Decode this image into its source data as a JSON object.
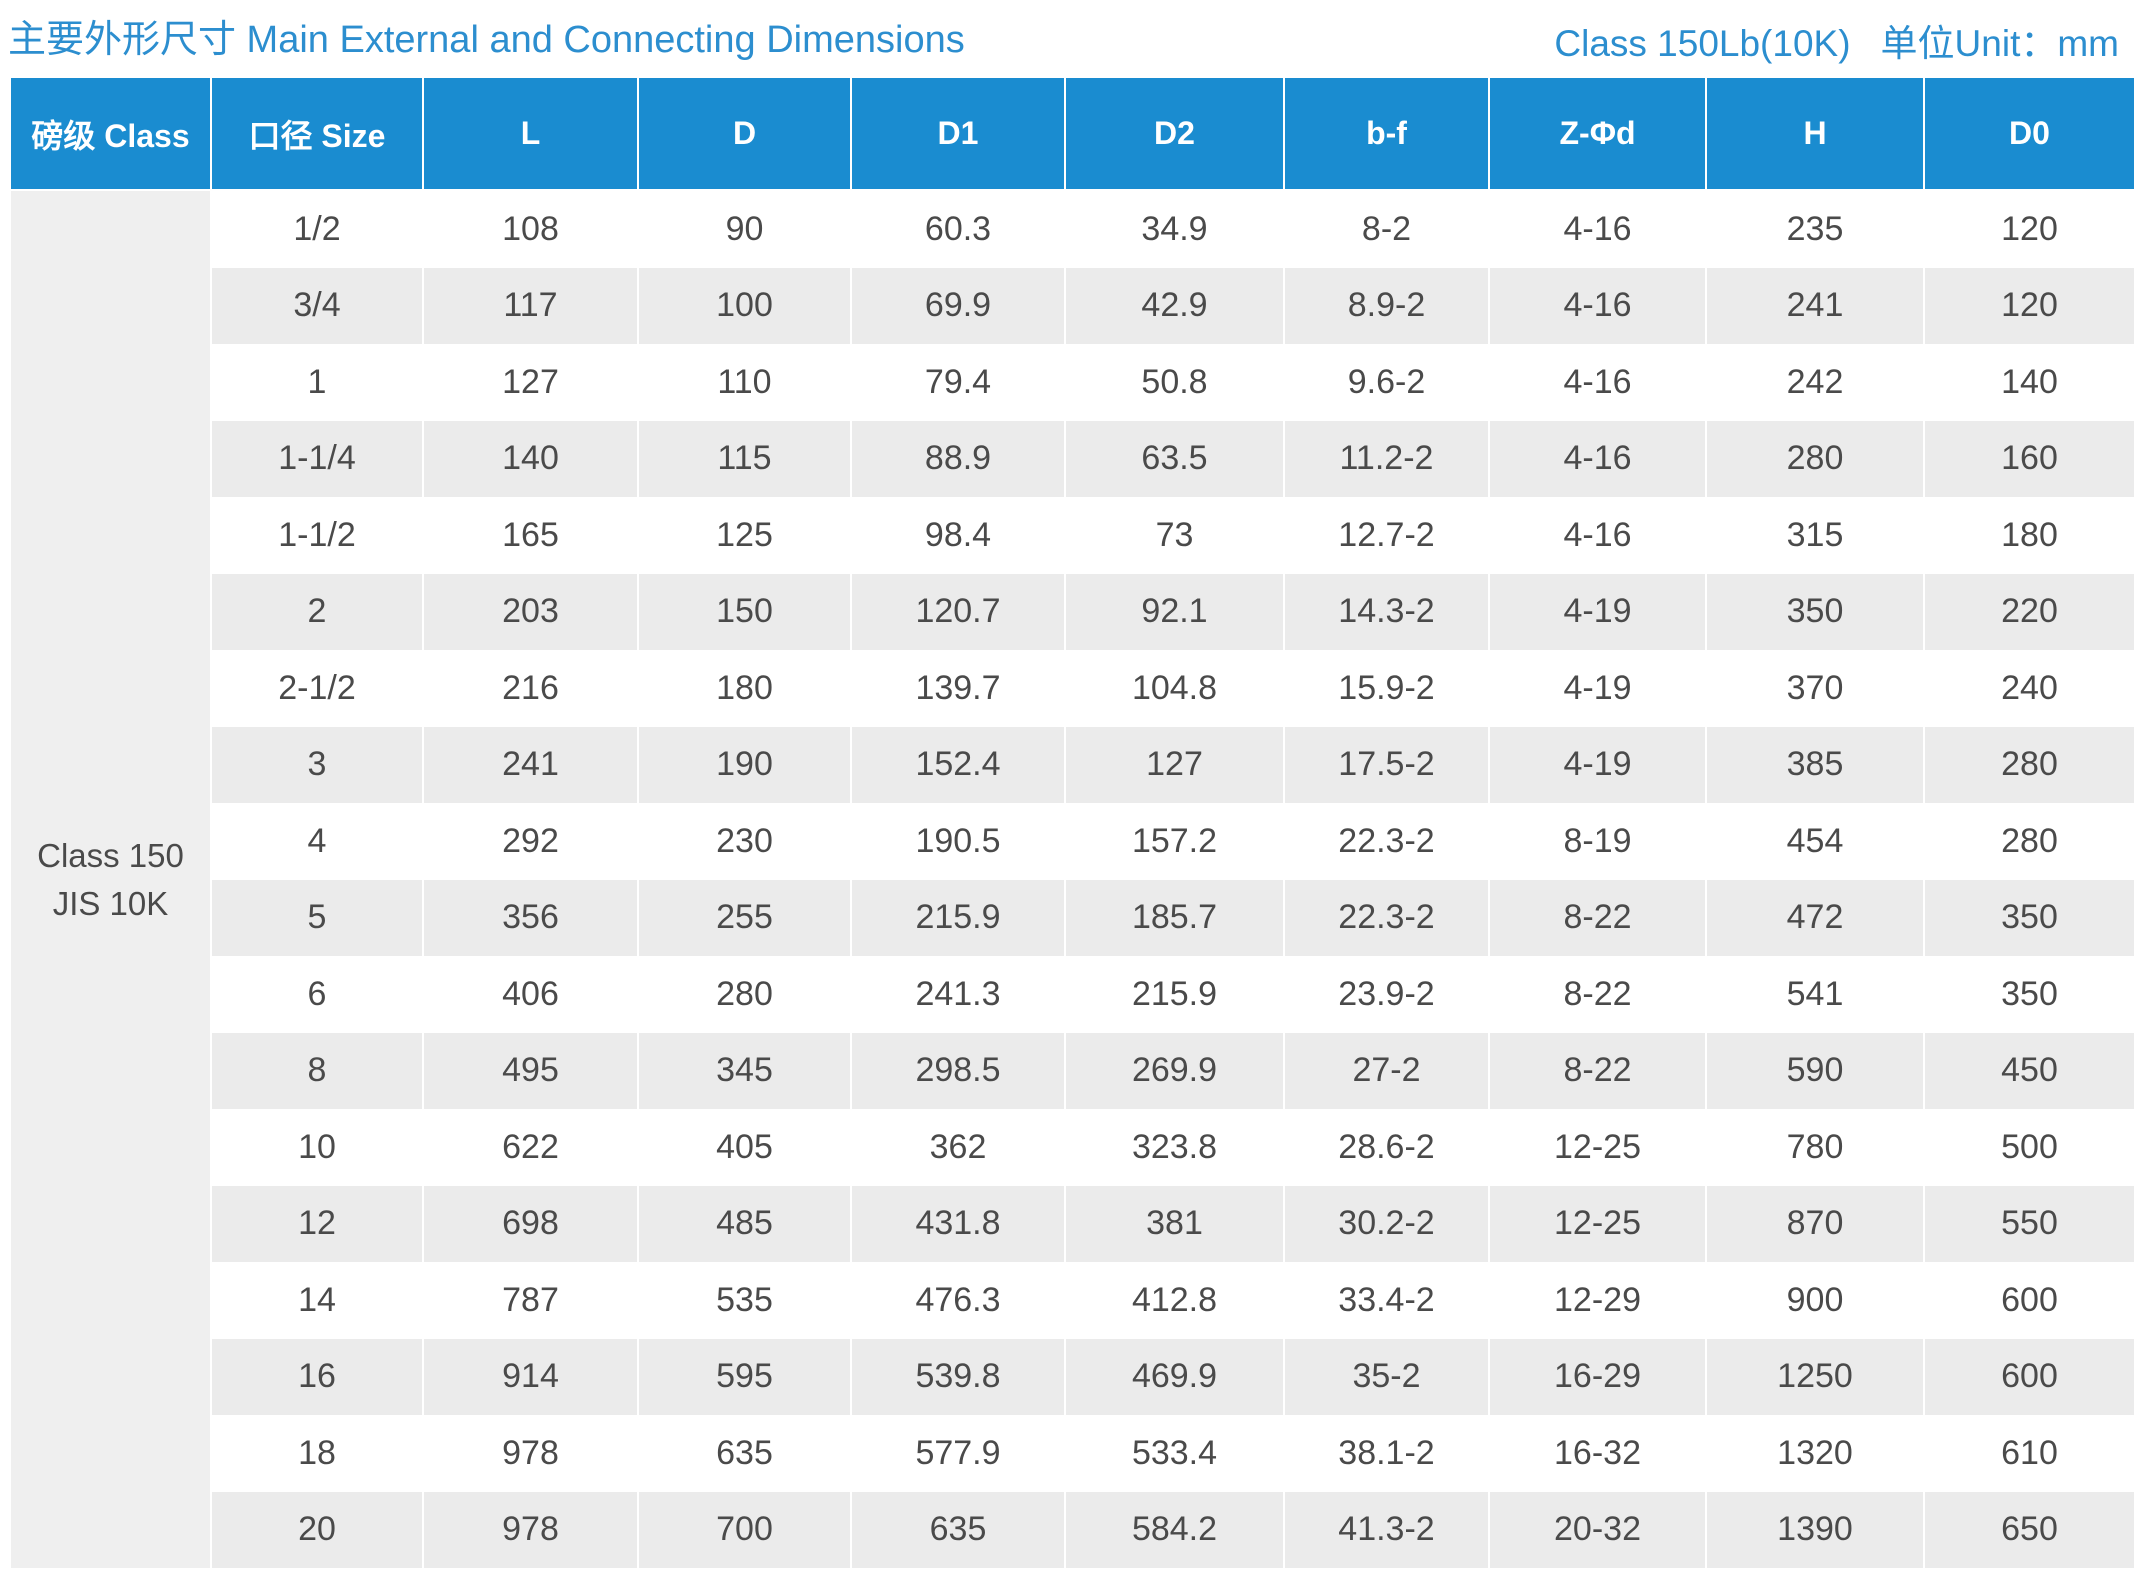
{
  "title": {
    "left": "主要外形尺寸 Main External and Connecting Dimensions",
    "class_label": "Class 150Lb(10K)",
    "unit": "单位Unit：mm"
  },
  "colors": {
    "accent": "#1a8cd0",
    "title": "#2c8ecf",
    "stripe": "#ebebeb",
    "class_bg": "#efefef",
    "text": "#4a4a4a"
  },
  "table": {
    "headers": [
      "磅级 Class",
      "口径 Size",
      "L",
      "D",
      "D1",
      "D2",
      "b-f",
      "Z-Φd",
      "H",
      "D0"
    ],
    "class_group": [
      "Class 150",
      "JIS 10K"
    ],
    "rows": [
      [
        "1/2",
        "108",
        "90",
        "60.3",
        "34.9",
        "8-2",
        "4-16",
        "235",
        "120"
      ],
      [
        "3/4",
        "117",
        "100",
        "69.9",
        "42.9",
        "8.9-2",
        "4-16",
        "241",
        "120"
      ],
      [
        "1",
        "127",
        "110",
        "79.4",
        "50.8",
        "9.6-2",
        "4-16",
        "242",
        "140"
      ],
      [
        "1-1/4",
        "140",
        "115",
        "88.9",
        "63.5",
        "11.2-2",
        "4-16",
        "280",
        "160"
      ],
      [
        "1-1/2",
        "165",
        "125",
        "98.4",
        "73",
        "12.7-2",
        "4-16",
        "315",
        "180"
      ],
      [
        "2",
        "203",
        "150",
        "120.7",
        "92.1",
        "14.3-2",
        "4-19",
        "350",
        "220"
      ],
      [
        "2-1/2",
        "216",
        "180",
        "139.7",
        "104.8",
        "15.9-2",
        "4-19",
        "370",
        "240"
      ],
      [
        "3",
        "241",
        "190",
        "152.4",
        "127",
        "17.5-2",
        "4-19",
        "385",
        "280"
      ],
      [
        "4",
        "292",
        "230",
        "190.5",
        "157.2",
        "22.3-2",
        "8-19",
        "454",
        "280"
      ],
      [
        "5",
        "356",
        "255",
        "215.9",
        "185.7",
        "22.3-2",
        "8-22",
        "472",
        "350"
      ],
      [
        "6",
        "406",
        "280",
        "241.3",
        "215.9",
        "23.9-2",
        "8-22",
        "541",
        "350"
      ],
      [
        "8",
        "495",
        "345",
        "298.5",
        "269.9",
        "27-2",
        "8-22",
        "590",
        "450"
      ],
      [
        "10",
        "622",
        "405",
        "362",
        "323.8",
        "28.6-2",
        "12-25",
        "780",
        "500"
      ],
      [
        "12",
        "698",
        "485",
        "431.8",
        "381",
        "30.2-2",
        "12-25",
        "870",
        "550"
      ],
      [
        "14",
        "787",
        "535",
        "476.3",
        "412.8",
        "33.4-2",
        "12-29",
        "900",
        "600"
      ],
      [
        "16",
        "914",
        "595",
        "539.8",
        "469.9",
        "35-2",
        "16-29",
        "1250",
        "600"
      ],
      [
        "18",
        "978",
        "635",
        "577.9",
        "533.4",
        "38.1-2",
        "16-32",
        "1320",
        "610"
      ],
      [
        "20",
        "978",
        "700",
        "635",
        "584.2",
        "41.3-2",
        "20-32",
        "1390",
        "650"
      ]
    ]
  }
}
